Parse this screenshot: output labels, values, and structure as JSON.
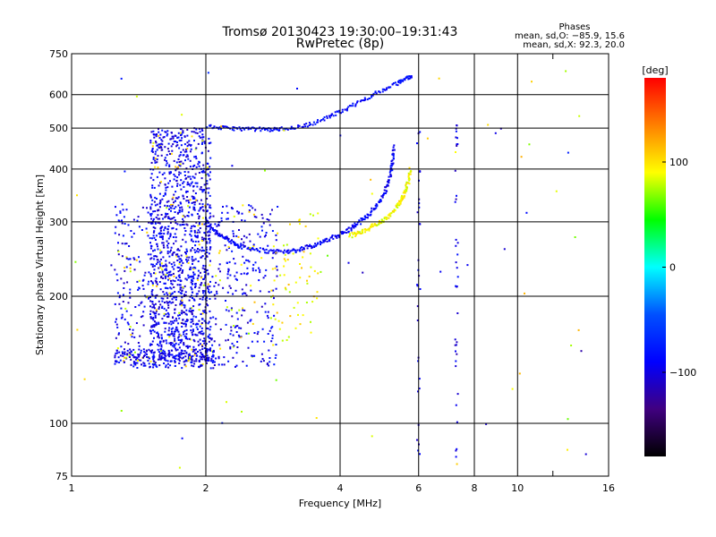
{
  "chart_data": {
    "type": "scatter",
    "title": "Tromsø 20130423 19:30:00–19:31:43",
    "subtitle": "RwPretec (8p)",
    "xlabel": "Frequency [MHz]",
    "ylabel": "Stationary phase Virtual Height [km]",
    "x_scale": "log",
    "y_scale": "log",
    "xlim": [
      1,
      16
    ],
    "ylim": [
      75,
      750
    ],
    "x_ticks": [
      1,
      2,
      4,
      6,
      8,
      10,
      16
    ],
    "x_ticks_minor": [
      12
    ],
    "y_ticks": [
      75,
      100,
      200,
      300,
      400,
      500,
      600,
      750
    ],
    "grid": true,
    "stats": {
      "heading": "Phases",
      "line1": "mean, sd,O: −85.9, 15.6",
      "line2": "mean, sd,X:  92.3, 20.0"
    },
    "colorbar": {
      "label": "[deg]",
      "range": [
        -180,
        180
      ],
      "ticks": [
        100,
        0,
        -100
      ],
      "tick_labels": [
        "100",
        "0",
        "−100"
      ],
      "colors": [
        "#ff0000",
        "#ff8000",
        "#ffff00",
        "#00ff00",
        "#00ffff",
        "#0050ff",
        "#0000ff",
        "#400080",
        "#000000"
      ]
    },
    "series": [
      {
        "trace": "O-mode F-layer trace",
        "phase_deg": -90,
        "x": [
          2.0,
          2.1,
          2.2,
          2.3,
          2.4,
          2.6,
          2.8,
          3.0,
          3.2,
          3.4,
          3.6,
          3.8,
          4.0,
          4.2,
          4.4,
          4.6,
          4.8,
          5.0,
          5.1,
          5.2,
          5.25,
          5.3
        ],
        "y": [
          300,
          285,
          275,
          268,
          262,
          258,
          255,
          255,
          257,
          262,
          267,
          273,
          280,
          288,
          298,
          310,
          325,
          345,
          365,
          390,
          420,
          455
        ],
        "spread": 0.012
      },
      {
        "trace": "X-mode F-layer trace",
        "phase_deg": 92,
        "x": [
          4.2,
          4.4,
          4.6,
          4.8,
          5.0,
          5.2,
          5.4,
          5.5,
          5.6,
          5.7,
          5.75
        ],
        "y": [
          278,
          282,
          288,
          295,
          302,
          312,
          328,
          340,
          355,
          375,
          400
        ],
        "spread": 0.012
      },
      {
        "trace": "second-hop echoes",
        "phase_deg": -85,
        "x": [
          2.0,
          2.2,
          2.4,
          2.6,
          2.8,
          3.0,
          3.3,
          3.6,
          3.9,
          4.2,
          4.6,
          5.0,
          5.4,
          5.6,
          5.8
        ],
        "y": [
          505,
          500,
          498,
          497,
          496,
          498,
          505,
          520,
          540,
          560,
          590,
          615,
          640,
          655,
          665
        ],
        "spread": 0.01
      },
      {
        "trace": "spread-F cloud",
        "phase_deg": -95,
        "x_range": [
          1.5,
          2.05
        ],
        "y_range": [
          140,
          500
        ],
        "count": 1100
      },
      {
        "trace": "lower spread echoes",
        "phase_deg": -95,
        "x_range": [
          1.25,
          2.9
        ],
        "y_range": [
          135,
          330
        ],
        "count": 700
      },
      {
        "trace": "E-region echoes",
        "phase_deg": -95,
        "x_range": [
          1.25,
          2.1
        ],
        "y_range": [
          135,
          150
        ],
        "count": 200
      },
      {
        "trace": "scattered X echoes",
        "phase_deg": 95,
        "x_range": [
          2.8,
          3.6
        ],
        "y_range": [
          150,
          330
        ],
        "count": 70
      },
      {
        "trace": "noise at 7.3 MHz",
        "phase_deg": -100,
        "x_range": [
          7.25,
          7.35
        ],
        "y_range": [
          80,
          560
        ],
        "count": 40
      },
      {
        "trace": "noise at 6.0 MHz",
        "phase_deg": -100,
        "x_range": [
          5.95,
          6.05
        ],
        "y_range": [
          80,
          520
        ],
        "count": 30
      },
      {
        "trace": "isolated points",
        "phase_deg": 60,
        "x_range": [
          1.0,
          15.0
        ],
        "y_range": [
          78,
          720
        ],
        "count": 70
      }
    ]
  }
}
